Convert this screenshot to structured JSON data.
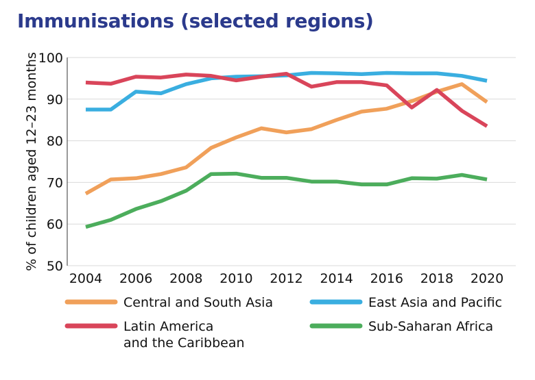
{
  "chart_data": {
    "type": "line",
    "title": "Immunisations (selected regions)",
    "ylabel": "% of children aged 12–23 months",
    "xlabel": "",
    "x": [
      2004,
      2005,
      2006,
      2007,
      2008,
      2009,
      2010,
      2011,
      2012,
      2013,
      2014,
      2015,
      2016,
      2017,
      2018,
      2019,
      2020
    ],
    "xticks": [
      2004,
      2006,
      2008,
      2010,
      2012,
      2014,
      2016,
      2018,
      2020
    ],
    "yticks": [
      50,
      60,
      70,
      80,
      90,
      100
    ],
    "xlim": [
      2004,
      2020
    ],
    "ylim": [
      50,
      100
    ],
    "grid": "horizontal",
    "legend_placement": "bottom",
    "series": [
      {
        "name": "Central and South Asia",
        "color": "#f0a05a",
        "values": [
          67.3,
          70.7,
          71.0,
          72.0,
          73.6,
          78.3,
          80.8,
          83.0,
          82.0,
          82.8,
          85.0,
          87.0,
          87.7,
          89.5,
          91.8,
          93.6,
          89.3
        ]
      },
      {
        "name": "East Asia and Pacific",
        "color": "#3aaee0",
        "values": [
          87.5,
          87.5,
          91.8,
          91.4,
          93.6,
          95.0,
          95.4,
          95.5,
          95.7,
          96.3,
          96.2,
          96.0,
          96.3,
          96.2,
          96.2,
          95.6,
          94.4
        ]
      },
      {
        "name": "Latin America\nand the Caribbean",
        "color": "#d9455a",
        "values": [
          94.0,
          93.7,
          95.4,
          95.2,
          95.9,
          95.6,
          94.5,
          95.4,
          96.1,
          93.0,
          94.1,
          94.1,
          93.3,
          88.0,
          92.2,
          87.2,
          83.5
        ]
      },
      {
        "name": "Sub-Saharan Africa",
        "color": "#4cad5c",
        "values": [
          59.3,
          61.0,
          63.6,
          65.5,
          68.0,
          72.0,
          72.1,
          71.1,
          71.1,
          70.2,
          70.2,
          69.5,
          69.5,
          71.0,
          70.9,
          71.8,
          70.7
        ]
      }
    ]
  }
}
